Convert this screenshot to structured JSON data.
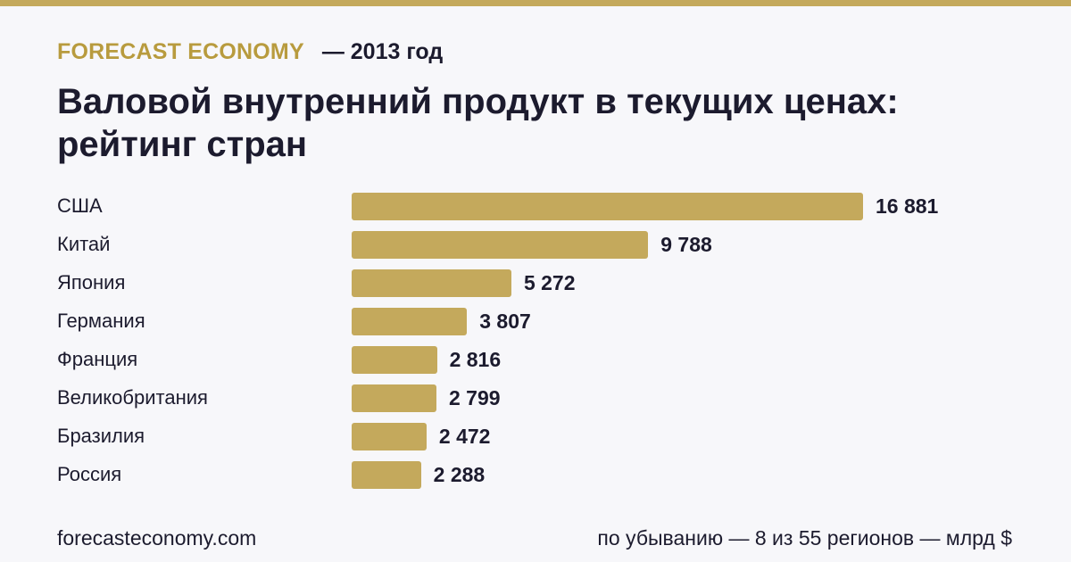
{
  "header": {
    "brand": "FORECAST ECONOMY",
    "year_note": "— 2013 год"
  },
  "title": "Валовой внутренний продукт в текущих ценах: рейтинг стран",
  "colors": {
    "accent": "#c4a95c",
    "brand": "#b89b3e",
    "text": "#1c1b2e",
    "background": "#f7f7fa"
  },
  "chart_data": {
    "type": "bar",
    "orientation": "horizontal",
    "title": "Валовой внутренний продукт в текущих ценах: рейтинг стран",
    "categories": [
      "США",
      "Китай",
      "Япония",
      "Германия",
      "Франция",
      "Великобритания",
      "Бразилия",
      "Россия"
    ],
    "values": [
      16881,
      9788,
      5272,
      3807,
      2816,
      2799,
      2472,
      2288
    ],
    "value_labels": [
      "16 881",
      "9 788",
      "5 272",
      "3 807",
      "2 816",
      "2 799",
      "2 472",
      "2 288"
    ],
    "unit": "млрд $",
    "grid": false,
    "legend": "none",
    "xlim": [
      0,
      16881
    ]
  },
  "footer": {
    "site": "forecasteconomy.com",
    "note": "по убыванию — 8 из 55 регионов — млрд $"
  }
}
